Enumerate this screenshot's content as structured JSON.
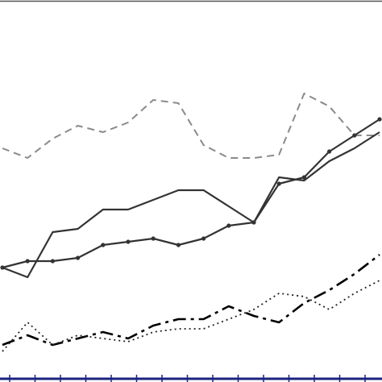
{
  "chart_data": {
    "type": "line",
    "title": "",
    "xlabel": "",
    "ylabel": "",
    "grid": false,
    "legend": "none",
    "x_range": [
      0,
      15
    ],
    "y_range": [
      0,
      100
    ],
    "x": [
      0,
      1,
      2,
      3,
      4,
      5,
      6,
      7,
      8,
      9,
      10,
      11,
      12,
      13,
      14,
      15
    ],
    "series": [
      {
        "color": "#8a8a8a",
        "style": "dashed-long",
        "markers": false,
        "values": [
          64,
          61,
          67,
          71,
          69,
          72,
          79,
          78,
          65,
          61,
          61,
          62,
          81,
          77,
          68,
          68
        ]
      },
      {
        "color": "#333333",
        "style": "solid",
        "markers": false,
        "values": [
          27,
          24,
          38,
          39,
          45,
          45,
          48,
          51,
          51,
          46,
          41,
          55,
          54,
          60,
          64,
          69
        ]
      },
      {
        "color": "#333333",
        "style": "solid",
        "markers": true,
        "values": [
          27,
          29,
          29,
          30,
          34,
          35,
          36,
          34,
          36,
          40,
          41,
          53,
          55,
          63,
          68,
          73
        ]
      },
      {
        "color": "#000000",
        "style": "dash-dot",
        "markers": false,
        "values": [
          3,
          6,
          3,
          5,
          7,
          5,
          9,
          11,
          11,
          15,
          12,
          10,
          16,
          20,
          25,
          31
        ]
      },
      {
        "color": "#222222",
        "style": "dotted",
        "markers": false,
        "values": [
          1,
          10,
          3,
          6,
          5,
          4,
          7,
          8,
          8,
          11,
          14,
          19,
          18,
          14,
          19,
          23
        ]
      }
    ]
  }
}
